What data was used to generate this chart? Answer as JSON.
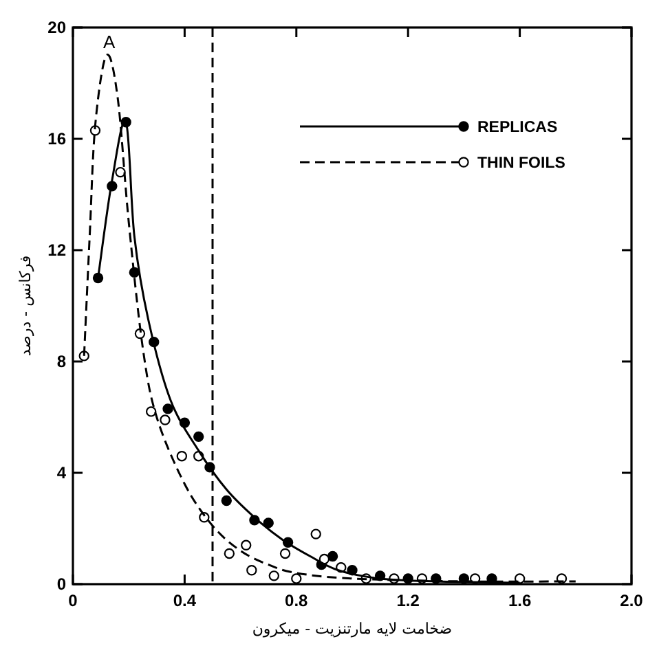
{
  "chart_data": {
    "type": "scatter",
    "xlabel": "ضخامت لایه مارتنزیت - میکرون",
    "ylabel": "فرکانس - درصد",
    "xlim": [
      0,
      2.0
    ],
    "ylim": [
      0,
      20
    ],
    "xticks": [
      0,
      0.4,
      0.8,
      1.2,
      1.6,
      {
        "value": 2.0,
        "label": "2.0"
      }
    ],
    "yticks": [
      0,
      4,
      8,
      12,
      16,
      20
    ],
    "legend": "top right",
    "series": [
      {
        "name": "REPLICAS",
        "marker": "circle",
        "line_style": "solid",
        "color": "#000000",
        "x": [
          0.09,
          0.14,
          0.19,
          0.22,
          0.29,
          0.34,
          0.4,
          0.45,
          0.49,
          0.55,
          0.65,
          0.7,
          0.77,
          0.89,
          0.93,
          1.0,
          1.1,
          1.2,
          1.3,
          1.4,
          1.5
        ],
        "values": [
          11,
          14.3,
          16.6,
          11.2,
          8.7,
          6.3,
          5.8,
          5.3,
          4.2,
          3.0,
          2.3,
          2.2,
          1.5,
          0.7,
          1.0,
          0.5,
          0.3,
          0.2,
          0.2,
          0.2,
          0.2
        ]
      },
      {
        "name": "THIN FOILS",
        "marker": "circle",
        "line_style": "dashed",
        "color": "#000000",
        "x": [
          0.04,
          0.08,
          0.17,
          0.24,
          0.28,
          0.33,
          0.39,
          0.45,
          0.47,
          0.56,
          0.62,
          0.64,
          0.72,
          0.76,
          0.8,
          0.87,
          0.9,
          0.96,
          1.05,
          1.15,
          1.25,
          1.44,
          1.6,
          1.75
        ],
        "values": [
          8.2,
          16.3,
          14.8,
          9.0,
          6.2,
          5.9,
          4.6,
          4.6,
          2.4,
          1.1,
          1.4,
          0.5,
          0.3,
          1.1,
          0.2,
          1.8,
          0.9,
          0.6,
          0.2,
          0.2,
          0.2,
          0.2,
          0.2,
          0.2
        ]
      },
      {
        "type": "line",
        "line_style": "solid",
        "color": "#000000",
        "x": [
          0.09,
          0.14,
          0.19,
          0.22,
          0.27,
          0.35,
          0.45,
          0.55,
          0.65,
          0.75,
          0.85,
          0.95,
          1.1,
          1.3,
          1.6
        ],
        "values": [
          11,
          14.5,
          16.6,
          12.5,
          9.5,
          6.6,
          4.8,
          3.4,
          2.4,
          1.6,
          1.0,
          0.5,
          0.2,
          0.1,
          0.05
        ]
      },
      {
        "type": "line",
        "line_style": "dashed",
        "color": "#000000",
        "x": [
          0.04,
          0.06,
          0.08,
          0.12,
          0.16,
          0.2,
          0.25,
          0.3,
          0.4,
          0.5,
          0.6,
          0.7,
          0.8,
          1.0,
          1.4,
          1.8
        ],
        "values": [
          8.2,
          12.5,
          16.5,
          19.0,
          17.5,
          13,
          8.5,
          6,
          3.6,
          2.1,
          1.2,
          0.7,
          0.4,
          0.2,
          0.1,
          0.1
        ]
      }
    ],
    "ref_lines": [
      {
        "axis": "x",
        "value": 0.5,
        "line_style": "dashed",
        "color": "#000000"
      }
    ],
    "annotations": [
      {
        "text": "A",
        "x": 0.13,
        "y": 19.1
      }
    ]
  }
}
